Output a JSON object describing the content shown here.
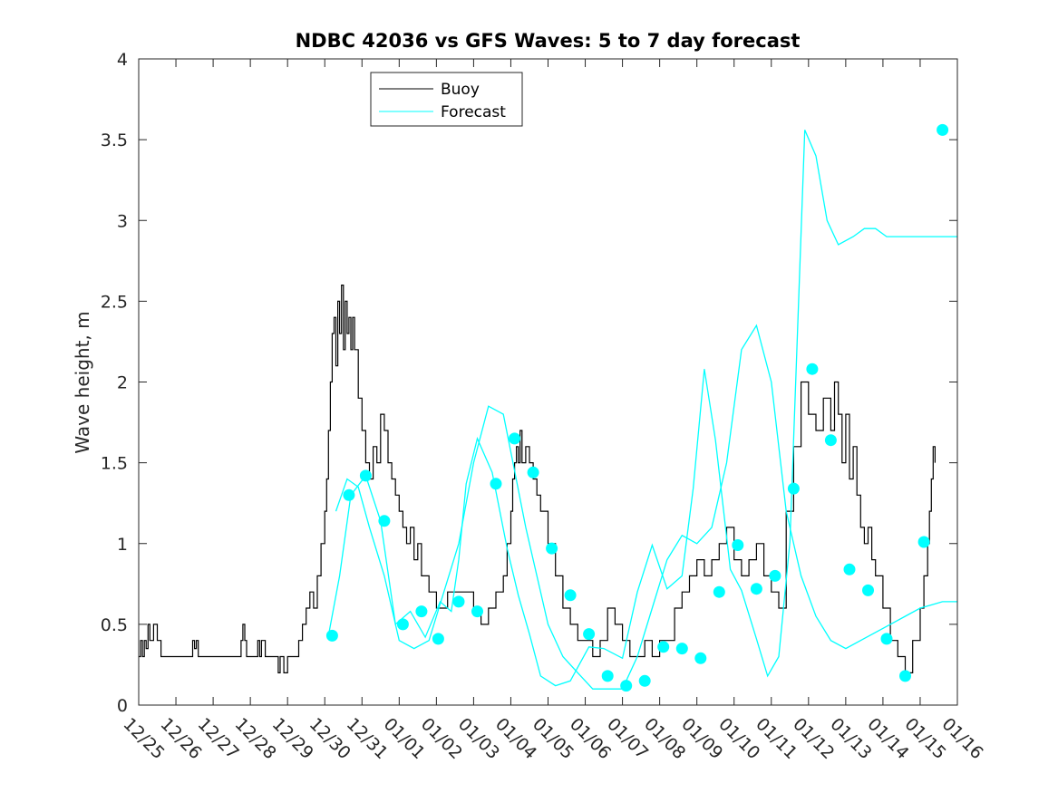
{
  "chart_data": {
    "type": "line",
    "title": "NDBC 42036 vs GFS Waves: 5 to 7 day forecast",
    "xlabel": "",
    "ylabel": "Wave height, m",
    "xlim": [
      0,
      22
    ],
    "ylim": [
      0,
      4
    ],
    "x_tick_labels": [
      "12/25",
      "12/26",
      "12/27",
      "12/28",
      "12/29",
      "12/30",
      "12/31",
      "01/01",
      "01/02",
      "01/03",
      "01/04",
      "01/05",
      "01/06",
      "01/07",
      "01/08",
      "01/09",
      "01/10",
      "01/11",
      "01/12",
      "01/13",
      "01/14",
      "01/15",
      "01/16"
    ],
    "y_ticks": [
      0,
      0.5,
      1,
      1.5,
      2,
      2.5,
      3,
      3.5,
      4
    ],
    "y_tick_labels": [
      "0",
      "0.5",
      "1",
      "1.5",
      "2",
      "2.5",
      "3",
      "3.5",
      "4"
    ],
    "legend": {
      "position": "top-center",
      "entries": [
        "Buoy",
        "Forecast"
      ]
    },
    "colors": {
      "buoy": "#000000",
      "forecast": "#00ffff",
      "axes": "#262626"
    },
    "buoy": {
      "name": "Buoy",
      "x": [
        0.0,
        0.05,
        0.1,
        0.15,
        0.2,
        0.25,
        0.3,
        0.4,
        0.5,
        0.6,
        0.7,
        0.8,
        1.0,
        1.2,
        1.4,
        1.45,
        1.5,
        1.55,
        1.6,
        1.8,
        2.0,
        2.2,
        2.5,
        2.7,
        2.75,
        2.8,
        2.85,
        2.9,
        3.1,
        3.2,
        3.25,
        3.3,
        3.4,
        3.5,
        3.7,
        3.75,
        3.8,
        3.9,
        4.0,
        4.1,
        4.2,
        4.3,
        4.4,
        4.5,
        4.6,
        4.7,
        4.8,
        4.9,
        5.0,
        5.05,
        5.1,
        5.15,
        5.2,
        5.25,
        5.3,
        5.35,
        5.4,
        5.45,
        5.5,
        5.55,
        5.6,
        5.65,
        5.7,
        5.75,
        5.8,
        5.9,
        6.0,
        6.1,
        6.2,
        6.3,
        6.4,
        6.5,
        6.6,
        6.7,
        6.8,
        6.9,
        7.0,
        7.1,
        7.2,
        7.3,
        7.4,
        7.5,
        7.6,
        7.8,
        8.0,
        8.3,
        8.6,
        8.8,
        9.0,
        9.2,
        9.4,
        9.6,
        9.8,
        9.9,
        10.0,
        10.05,
        10.1,
        10.15,
        10.2,
        10.25,
        10.3,
        10.4,
        10.5,
        10.6,
        10.7,
        10.8,
        11.0,
        11.2,
        11.4,
        11.6,
        11.8,
        12.0,
        12.2,
        12.4,
        12.6,
        12.8,
        13.0,
        13.2,
        13.4,
        13.6,
        13.8,
        14.0,
        14.2,
        14.4,
        14.6,
        14.8,
        15.0,
        15.2,
        15.4,
        15.6,
        15.8,
        16.0,
        16.2,
        16.4,
        16.6,
        16.8,
        17.0,
        17.2,
        17.4,
        17.6,
        17.8,
        18.0,
        18.2,
        18.4,
        18.6,
        18.7,
        18.8,
        18.9,
        19.0,
        19.1,
        19.2,
        19.3,
        19.4,
        19.5,
        19.6,
        19.7,
        19.8,
        20.0,
        20.2,
        20.4,
        20.6,
        20.8,
        21.0,
        21.1,
        21.2,
        21.25,
        21.3,
        21.35,
        21.4
      ],
      "y": [
        0.3,
        0.4,
        0.3,
        0.4,
        0.35,
        0.5,
        0.4,
        0.5,
        0.4,
        0.3,
        0.3,
        0.3,
        0.3,
        0.3,
        0.3,
        0.4,
        0.35,
        0.4,
        0.3,
        0.3,
        0.3,
        0.3,
        0.3,
        0.3,
        0.4,
        0.5,
        0.4,
        0.3,
        0.3,
        0.4,
        0.3,
        0.4,
        0.3,
        0.3,
        0.3,
        0.2,
        0.3,
        0.2,
        0.3,
        0.3,
        0.3,
        0.4,
        0.5,
        0.6,
        0.7,
        0.6,
        0.8,
        1.0,
        1.2,
        1.4,
        1.7,
        2.0,
        2.3,
        2.4,
        2.1,
        2.5,
        2.3,
        2.6,
        2.2,
        2.5,
        2.3,
        2.4,
        2.2,
        2.4,
        2.2,
        1.9,
        1.7,
        1.5,
        1.4,
        1.6,
        1.5,
        1.8,
        1.7,
        1.5,
        1.4,
        1.3,
        1.2,
        1.1,
        1.0,
        1.1,
        0.9,
        1.0,
        0.8,
        0.7,
        0.6,
        0.7,
        0.7,
        0.7,
        0.6,
        0.5,
        0.6,
        0.7,
        0.8,
        1.0,
        1.2,
        1.4,
        1.5,
        1.6,
        1.5,
        1.7,
        1.5,
        1.6,
        1.5,
        1.4,
        1.3,
        1.2,
        1.0,
        0.8,
        0.6,
        0.5,
        0.4,
        0.4,
        0.3,
        0.4,
        0.6,
        0.5,
        0.4,
        0.3,
        0.3,
        0.4,
        0.3,
        0.4,
        0.4,
        0.6,
        0.7,
        0.8,
        0.9,
        0.8,
        0.9,
        1.0,
        1.1,
        0.9,
        0.8,
        0.9,
        1.0,
        0.8,
        0.7,
        0.6,
        1.2,
        1.6,
        2.0,
        1.8,
        1.7,
        1.9,
        1.7,
        2.0,
        1.8,
        1.5,
        1.8,
        1.4,
        1.6,
        1.3,
        1.1,
        1.0,
        1.1,
        0.9,
        0.8,
        0.6,
        0.4,
        0.3,
        0.2,
        0.4,
        0.6,
        0.8,
        1.0,
        1.2,
        1.4,
        1.6,
        1.5
      ],
      "label": "Buoy"
    },
    "forecasts": [
      {
        "name": "Forecast",
        "x": [
          5.1,
          5.4,
          5.7,
          6.1,
          6.5,
          6.9,
          7.3,
          7.7,
          8.1,
          8.4,
          8.6,
          8.8,
          9.1,
          9.5,
          9.9,
          10.2,
          10.5,
          10.8,
          11.2,
          11.6,
          12.1,
          12.5,
          13.0,
          13.4,
          13.8,
          14.2,
          14.6,
          14.9,
          15.2,
          15.5,
          15.9,
          16.2,
          16.6,
          16.9,
          17.2,
          17.5,
          17.9,
          18.2,
          18.5,
          18.8,
          19.2,
          19.5,
          19.8,
          20.1,
          20.4,
          20.7,
          21.0,
          21.3,
          21.6,
          21.8,
          22.0
        ],
        "y": [
          0.43,
          0.8,
          1.3,
          1.42,
          1.14,
          0.5,
          0.58,
          0.42,
          0.64,
          0.58,
          0.9,
          1.37,
          1.65,
          1.44,
          0.97,
          0.68,
          0.44,
          0.18,
          0.12,
          0.15,
          0.36,
          0.35,
          0.29,
          0.7,
          0.99,
          0.72,
          0.8,
          1.34,
          2.08,
          1.64,
          0.84,
          0.71,
          0.41,
          0.18,
          0.3,
          1.01,
          3.56,
          3.4,
          3.0,
          2.85,
          2.9,
          2.95,
          2.95,
          2.9,
          2.9,
          2.9,
          2.9,
          2.9,
          2.9,
          2.9,
          2.9
        ]
      },
      {
        "name": "Forecast",
        "x": [
          5.3,
          5.6,
          5.9,
          6.2,
          6.6,
          7.0,
          7.4,
          7.8,
          8.2,
          8.6,
          9.0,
          9.4,
          9.8,
          10.1,
          10.4,
          10.7,
          11.0,
          11.4,
          11.8,
          12.2,
          12.6,
          13.0,
          13.4,
          13.8,
          14.2,
          14.6,
          15.0,
          15.4,
          15.8,
          16.2,
          16.6,
          17.0,
          17.4,
          17.8,
          18.2,
          18.6,
          19.0,
          19.4,
          19.8,
          20.2,
          20.6,
          21.0,
          21.3,
          21.6,
          21.9,
          22.0
        ],
        "y": [
          1.2,
          1.4,
          1.35,
          1.1,
          0.8,
          0.4,
          0.35,
          0.4,
          0.7,
          1.0,
          1.5,
          1.85,
          1.8,
          1.45,
          1.1,
          0.8,
          0.5,
          0.3,
          0.2,
          0.1,
          0.1,
          0.1,
          0.3,
          0.6,
          0.9,
          1.05,
          1.0,
          1.1,
          1.5,
          2.2,
          2.35,
          2.0,
          1.2,
          0.8,
          0.55,
          0.4,
          0.35,
          0.4,
          0.45,
          0.5,
          0.55,
          0.6,
          0.62,
          0.64,
          0.64,
          0.64
        ]
      }
    ],
    "markers": {
      "x": [
        5.2,
        5.65,
        6.1,
        6.6,
        7.1,
        7.6,
        8.05,
        8.6,
        9.1,
        9.6,
        10.1,
        10.6,
        11.1,
        11.6,
        12.1,
        12.6,
        13.1,
        13.6,
        14.1,
        14.6,
        15.1,
        15.6,
        16.1,
        16.6,
        17.1,
        17.6,
        18.1,
        18.6,
        19.1,
        19.6,
        20.1,
        20.6,
        21.1,
        21.6
      ],
      "y": [
        0.43,
        1.3,
        1.42,
        1.14,
        0.5,
        0.58,
        0.41,
        0.64,
        0.58,
        1.37,
        1.65,
        1.44,
        0.97,
        0.68,
        0.44,
        0.18,
        0.12,
        0.15,
        0.36,
        0.35,
        0.29,
        0.7,
        0.99,
        0.72,
        0.8,
        1.34,
        2.08,
        1.64,
        0.84,
        0.71,
        0.41,
        0.18,
        1.01,
        3.56
      ]
    }
  }
}
